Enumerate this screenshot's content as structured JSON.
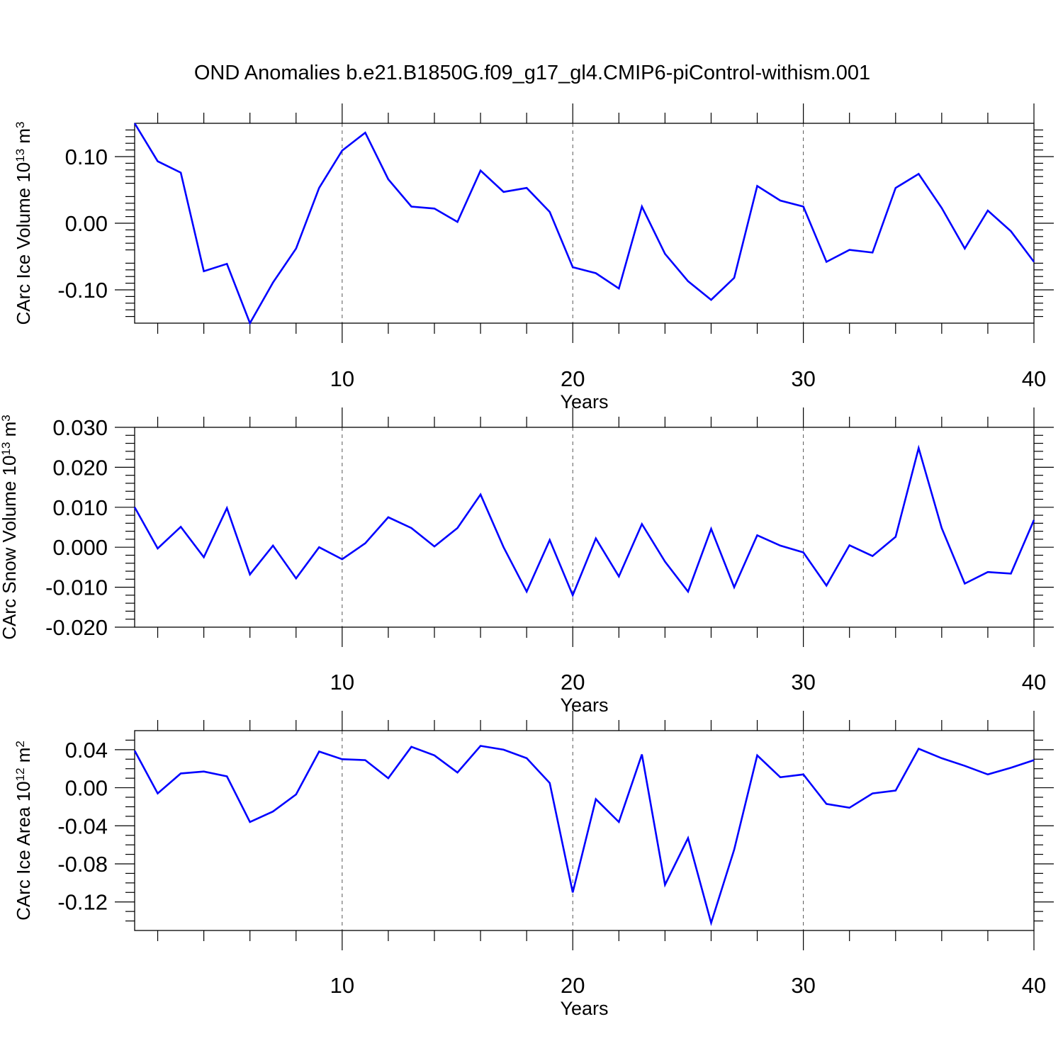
{
  "title": "OND Anomalies b.e21.B1850G.f09_g17_gl4.CMIP6-piControl-withism.001",
  "line_color": "#0000ff",
  "chart_data": [
    {
      "type": "line",
      "ylabel": "CArc Ice Volume 10",
      "ylabel_sup": "13",
      "ylabel_unit": " m",
      "ylabel_unit_sup": "3",
      "xlabel": "Years",
      "xlim": [
        1,
        40
      ],
      "ylim": [
        -0.15,
        0.15
      ],
      "grid": "dashed vertical lines at 10, 20, 30",
      "x_ticks": [
        10,
        20,
        30,
        40
      ],
      "x_tick_labels": [
        "10",
        "20",
        "30",
        "40"
      ],
      "y_ticks": [
        0.1,
        0.0,
        -0.1
      ],
      "y_tick_labels": [
        "0.10",
        "0.00",
        "-0.10"
      ],
      "x": [
        1,
        2,
        3,
        4,
        5,
        6,
        7,
        8,
        9,
        10,
        11,
        12,
        13,
        14,
        15,
        16,
        17,
        18,
        19,
        20,
        21,
        22,
        23,
        24,
        25,
        26,
        27,
        28,
        29,
        30,
        31,
        32,
        33,
        34,
        35,
        36,
        37,
        38,
        39,
        40
      ],
      "values": [
        0.15,
        0.093,
        0.076,
        -0.072,
        -0.061,
        -0.15,
        -0.089,
        -0.038,
        0.053,
        0.109,
        0.136,
        0.066,
        0.025,
        0.022,
        0.002,
        0.079,
        0.047,
        0.053,
        0.017,
        -0.066,
        -0.075,
        -0.098,
        0.025,
        -0.046,
        -0.087,
        -0.115,
        -0.082,
        0.056,
        0.034,
        0.025,
        -0.058,
        -0.04,
        -0.044,
        0.053,
        0.074,
        0.023,
        -0.038,
        0.019,
        -0.012,
        -0.058
      ]
    },
    {
      "type": "line",
      "ylabel": "CArc Snow Volume 10",
      "ylabel_sup": "13",
      "ylabel_unit": " m",
      "ylabel_unit_sup": "3",
      "xlabel": "Years",
      "xlim": [
        1,
        40
      ],
      "ylim": [
        -0.02,
        0.03
      ],
      "grid": "dashed vertical lines at 10, 20, 30",
      "x_ticks": [
        10,
        20,
        30,
        40
      ],
      "x_tick_labels": [
        "10",
        "20",
        "30",
        "40"
      ],
      "y_ticks": [
        0.03,
        0.02,
        0.01,
        0.0,
        -0.01,
        -0.02
      ],
      "y_tick_labels": [
        "0.030",
        "0.020",
        "0.010",
        "0.000",
        "-0.010",
        "-0.020"
      ],
      "x": [
        1,
        2,
        3,
        4,
        5,
        6,
        7,
        8,
        9,
        10,
        11,
        12,
        13,
        14,
        15,
        16,
        17,
        18,
        19,
        20,
        21,
        22,
        23,
        24,
        25,
        26,
        27,
        28,
        29,
        30,
        31,
        32,
        33,
        34,
        35,
        36,
        37,
        38,
        39,
        40
      ],
      "values": [
        0.01,
        -0.0003,
        0.0051,
        -0.0025,
        0.0098,
        -0.0068,
        0.0004,
        -0.0078,
        0.0,
        -0.003,
        0.001,
        0.0075,
        0.0048,
        0.0002,
        0.0048,
        0.0132,
        0.0,
        -0.0111,
        0.0018,
        -0.012,
        0.0022,
        -0.0073,
        0.0058,
        -0.0036,
        -0.0111,
        0.0046,
        -0.01,
        0.003,
        0.0004,
        -0.0013,
        -0.0096,
        0.0005,
        -0.0022,
        0.0026,
        0.0248,
        0.0048,
        -0.0091,
        -0.0062,
        -0.0066,
        0.0068
      ]
    },
    {
      "type": "line",
      "ylabel": "CArc Ice Area 10",
      "ylabel_sup": "12",
      "ylabel_unit": " m",
      "ylabel_unit_sup": "2",
      "xlabel": "Years",
      "xlim": [
        1,
        40
      ],
      "ylim": [
        -0.15,
        0.06
      ],
      "grid": "dashed vertical lines at 10, 20, 30",
      "x_ticks": [
        10,
        20,
        30,
        40
      ],
      "x_tick_labels": [
        "10",
        "20",
        "30",
        "40"
      ],
      "y_ticks": [
        0.04,
        0.0,
        -0.04,
        -0.08,
        -0.12
      ],
      "y_tick_labels": [
        "0.04",
        "0.00",
        "-0.04",
        "-0.08",
        "-0.12"
      ],
      "x": [
        1,
        2,
        3,
        4,
        5,
        6,
        7,
        8,
        9,
        10,
        11,
        12,
        13,
        14,
        15,
        16,
        17,
        18,
        19,
        20,
        21,
        22,
        23,
        24,
        25,
        26,
        27,
        28,
        29,
        30,
        31,
        32,
        33,
        34,
        35,
        36,
        37,
        38,
        39,
        40
      ],
      "values": [
        0.039,
        -0.006,
        0.015,
        0.017,
        0.012,
        -0.036,
        -0.025,
        -0.007,
        0.038,
        0.03,
        0.029,
        0.01,
        0.043,
        0.034,
        0.016,
        0.044,
        0.04,
        0.031,
        0.005,
        -0.11,
        -0.012,
        -0.036,
        0.035,
        -0.102,
        -0.053,
        -0.142,
        -0.065,
        0.034,
        0.011,
        0.014,
        -0.017,
        -0.021,
        -0.006,
        -0.003,
        0.041,
        0.031,
        0.023,
        0.014,
        0.021,
        0.029
      ]
    }
  ]
}
